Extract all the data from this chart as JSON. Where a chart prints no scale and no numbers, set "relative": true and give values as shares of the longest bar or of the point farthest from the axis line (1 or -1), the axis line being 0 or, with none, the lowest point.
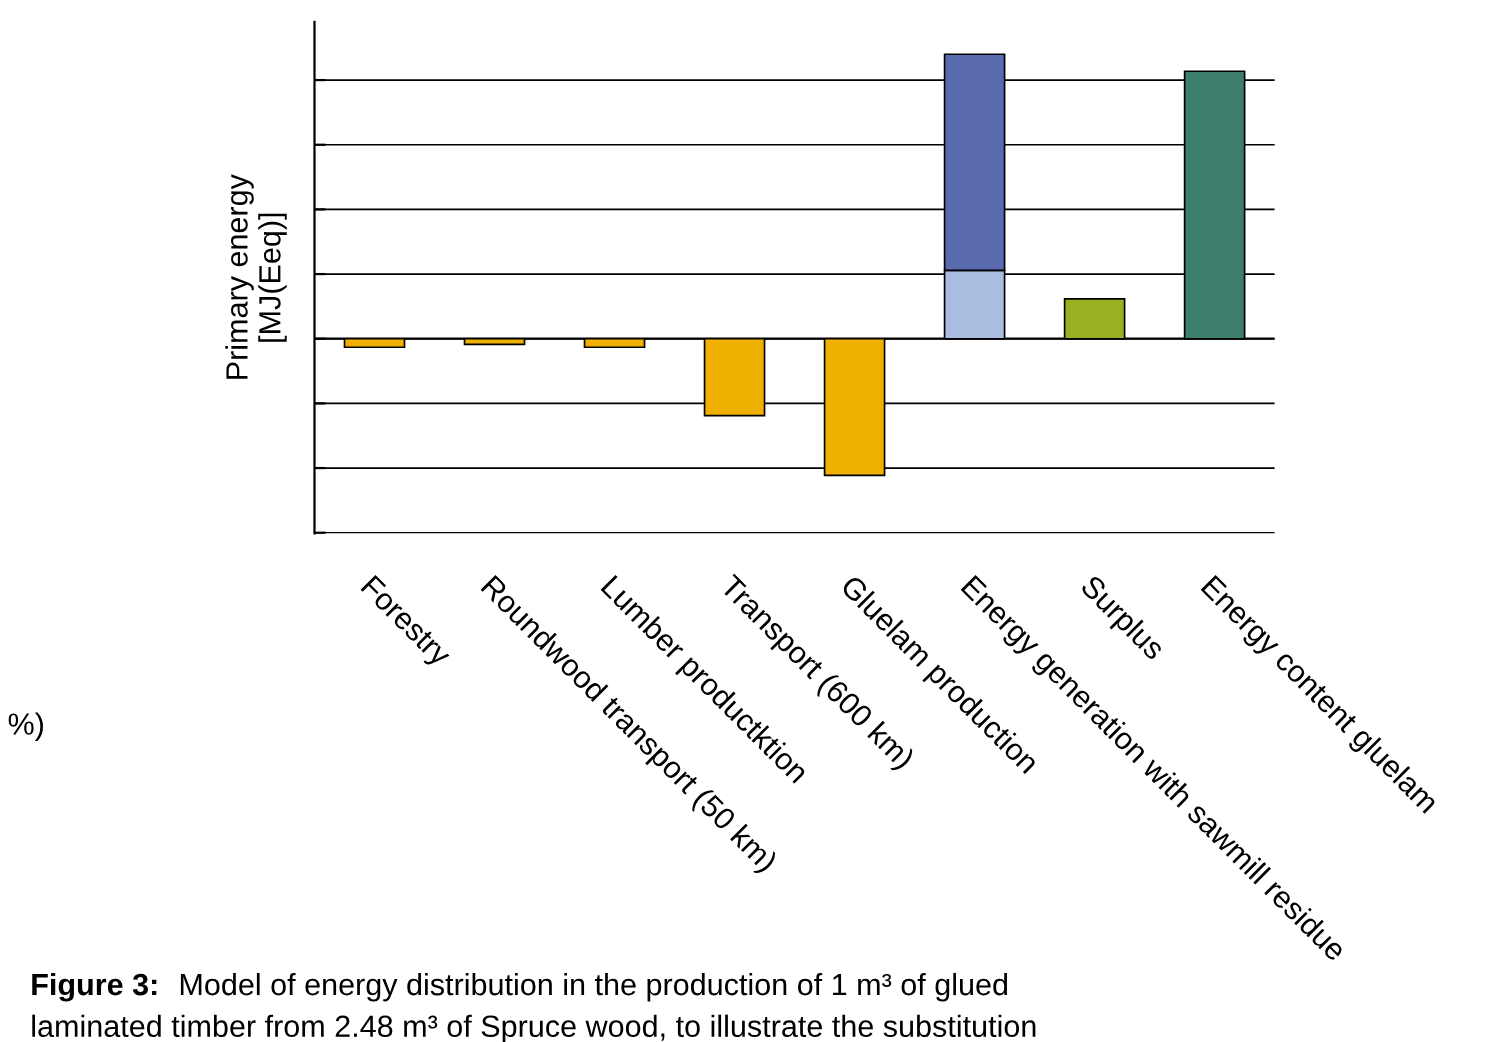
{
  "chart_data": {
    "type": "bar",
    "ylabel": "Primary energy\n[MJ(Eeq)]",
    "relative": true,
    "stacked": true,
    "grid": "y",
    "categories": [
      "Forestry",
      "Roundwood transport (50 km)",
      "Lumber productktion",
      "Transport (600 km)",
      "Gluelam production",
      "Energy generation with sawmill residue",
      "Surplus",
      "Energy content gluelam"
    ],
    "series": [
      {
        "colors": [
          "#f0b000",
          "#f0b000",
          "#f0b000",
          "#f0b000",
          "#f0b000",
          "#a8bde0",
          "#99b020",
          "#3d7f6e"
        ],
        "values": [
          -0.03,
          -0.02,
          -0.03,
          -0.27,
          -0.48,
          0.24,
          0.14,
          0.94
        ]
      },
      {
        "colors": [
          null,
          null,
          null,
          null,
          null,
          "#5a6aae",
          null,
          null
        ],
        "values": [
          null,
          null,
          null,
          null,
          null,
          0.76,
          null,
          null
        ]
      }
    ],
    "annotations": [
      "%)",
      "Figure 3:",
      "Model of energy distribution in the production of 1 m³ of glued",
      "laminated timber from 2.48 m³ of Spruce wood, to illustrate the substitution"
    ]
  }
}
